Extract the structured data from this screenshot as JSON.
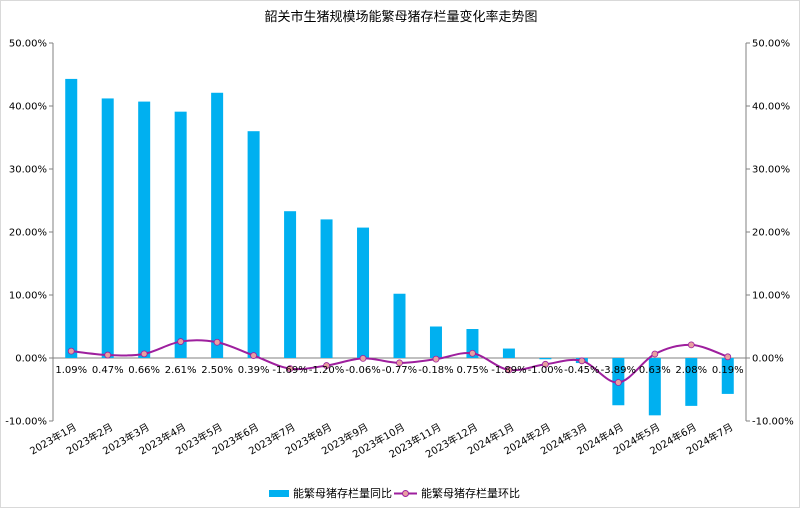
{
  "chart_data": {
    "type": "bar+line",
    "title": "韶关市生猪规模场能繁母猪存栏量变化率走势图",
    "categories": [
      "2023年1月",
      "2023年2月",
      "2023年3月",
      "2023年4月",
      "2023年5月",
      "2023年6月",
      "2023年7月",
      "2023年8月",
      "2023年9月",
      "2023年10月",
      "2023年11月",
      "2023年12月",
      "2024年1月",
      "2024年2月",
      "2024年3月",
      "2024年4月",
      "2024年5月",
      "2024年6月",
      "2024年7月"
    ],
    "series": [
      {
        "name": "能繁母猪存栏量同比",
        "kind": "bar",
        "color": "#00B0F0",
        "values": [
          44.3,
          41.2,
          40.7,
          39.1,
          42.1,
          36.0,
          23.3,
          22.0,
          20.7,
          10.2,
          5.0,
          4.6,
          1.5,
          -0.2,
          -0.8,
          -7.5,
          -9.1,
          -7.6,
          -5.7
        ]
      },
      {
        "name": "能繁母猪存栏量环比",
        "kind": "line",
        "color": "#9E1F9E",
        "marker_color": "#E8A0A0",
        "values": [
          1.09,
          0.47,
          0.66,
          2.61,
          2.5,
          0.39,
          -1.69,
          -1.2,
          -0.06,
          -0.77,
          -0.18,
          0.75,
          -1.89,
          -1.0,
          -0.45,
          -3.89,
          0.63,
          2.08,
          0.19
        ],
        "labels": [
          "1.09%",
          "0.47%",
          "0.66%",
          "2.61%",
          "2.50%",
          "0.39%",
          "-1.69%",
          "-1.20%",
          "-0.06%",
          "-0.77%",
          "-0.18%",
          "0.75%",
          "-1.89%",
          "-1.00%",
          "-0.45%",
          "-3.89%",
          "0.63%",
          "2.08%",
          "0.19%"
        ]
      }
    ],
    "y_axis": {
      "min": -10,
      "max": 50,
      "step": 10,
      "tick_labels": [
        "-10.00%",
        "0.00%",
        "10.00%",
        "20.00%",
        "30.00%",
        "40.00%",
        "50.00%"
      ]
    },
    "secondary_y_axis": {
      "min": -10,
      "max": 50,
      "step": 10,
      "tick_labels": [
        "-10.00%",
        "0.00%",
        "10.00%",
        "20.00%",
        "30.00%",
        "40.00%",
        "50.00%"
      ]
    },
    "grid": false,
    "legend_position": "bottom"
  }
}
